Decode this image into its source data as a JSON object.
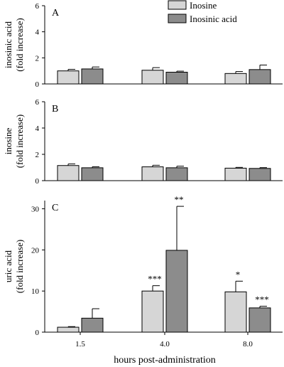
{
  "legend": [
    {
      "name": "Inosine",
      "color": "#d6d6d6"
    },
    {
      "name": "Inosinic acid",
      "color": "#8c8c8c"
    }
  ],
  "xlabel": "hours post-administration",
  "chart_data": [
    {
      "type": "bar",
      "panel": "A",
      "ylabel": [
        "inosinic acid",
        "(fold increase)"
      ],
      "ylim": [
        0,
        6
      ],
      "yticks": [
        0,
        2,
        4,
        6
      ],
      "categories": [
        "1.5",
        "4.0",
        "8.0"
      ],
      "show_xticks": false,
      "series": [
        {
          "name": "Inosine",
          "color": "#d6d6d6",
          "values": [
            1.0,
            1.05,
            0.8
          ],
          "errors": [
            0.12,
            0.2,
            0.15
          ],
          "sig": [
            "",
            "",
            ""
          ]
        },
        {
          "name": "Inosinic acid",
          "color": "#8c8c8c",
          "values": [
            1.15,
            0.9,
            1.1
          ],
          "errors": [
            0.15,
            0.08,
            0.35
          ],
          "sig": [
            "",
            "",
            ""
          ]
        }
      ]
    },
    {
      "type": "bar",
      "panel": "B",
      "ylabel": [
        "inosine",
        "(fold increase)"
      ],
      "ylim": [
        0,
        6
      ],
      "yticks": [
        0,
        2,
        4,
        6
      ],
      "categories": [
        "1.5",
        "4.0",
        "8.0"
      ],
      "show_xticks": false,
      "series": [
        {
          "name": "Inosine",
          "color": "#d6d6d6",
          "values": [
            1.15,
            1.05,
            0.95
          ],
          "errors": [
            0.12,
            0.12,
            0.06
          ],
          "sig": [
            "",
            "",
            ""
          ]
        },
        {
          "name": "Inosinic acid",
          "color": "#8c8c8c",
          "values": [
            0.98,
            0.98,
            0.93
          ],
          "errors": [
            0.08,
            0.12,
            0.06
          ],
          "sig": [
            "",
            "",
            ""
          ]
        }
      ]
    },
    {
      "type": "bar",
      "panel": "C",
      "ylabel": [
        "uric acid",
        "(fold increase)"
      ],
      "ylim": [
        0,
        32
      ],
      "yticks": [
        0,
        10,
        20,
        30
      ],
      "categories": [
        "1.5",
        "4.0",
        "8.0"
      ],
      "show_xticks": true,
      "series": [
        {
          "name": "Inosine",
          "color": "#d6d6d6",
          "values": [
            1.2,
            10.0,
            9.8
          ],
          "errors": [
            0.15,
            1.3,
            2.6
          ],
          "sig": [
            "",
            "***",
            "*"
          ]
        },
        {
          "name": "Inosinic acid",
          "color": "#8c8c8c",
          "values": [
            3.4,
            19.9,
            5.9
          ],
          "errors": [
            2.3,
            10.7,
            0.4
          ],
          "sig": [
            "",
            "**",
            "***"
          ]
        }
      ]
    }
  ]
}
